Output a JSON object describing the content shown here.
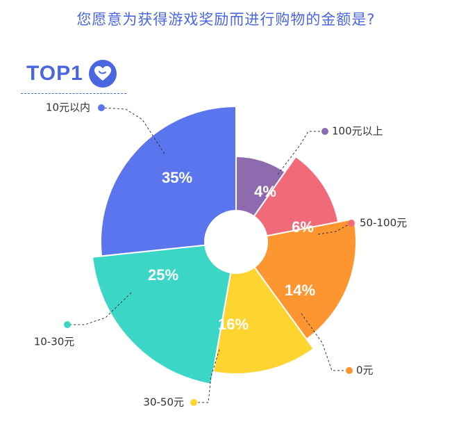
{
  "title": "您愿意为获得游戏奖励而进行购物的金额是?",
  "badge": {
    "label": "TOP1",
    "icon": "heart-icon"
  },
  "chart_data": {
    "type": "pie",
    "variant": "rose",
    "title": "您愿意为获得游戏奖励而进行购物的金额是?",
    "slices": [
      {
        "label": "100元以上",
        "value": 4,
        "display": "4%",
        "color": "#8e6aae"
      },
      {
        "label": "50-100元",
        "value": 6,
        "display": "6%",
        "color": "#f06a7a"
      },
      {
        "label": "0元",
        "value": 14,
        "display": "14%",
        "color": "#fd9530"
      },
      {
        "label": "30-50元",
        "value": 16,
        "display": "16%",
        "color": "#fed431"
      },
      {
        "label": "10-30元",
        "value": 25,
        "display": "25%",
        "color": "#3cd6c6"
      },
      {
        "label": "10元以内",
        "value": 35,
        "display": "35%",
        "color": "#5a75ee"
      }
    ]
  }
}
